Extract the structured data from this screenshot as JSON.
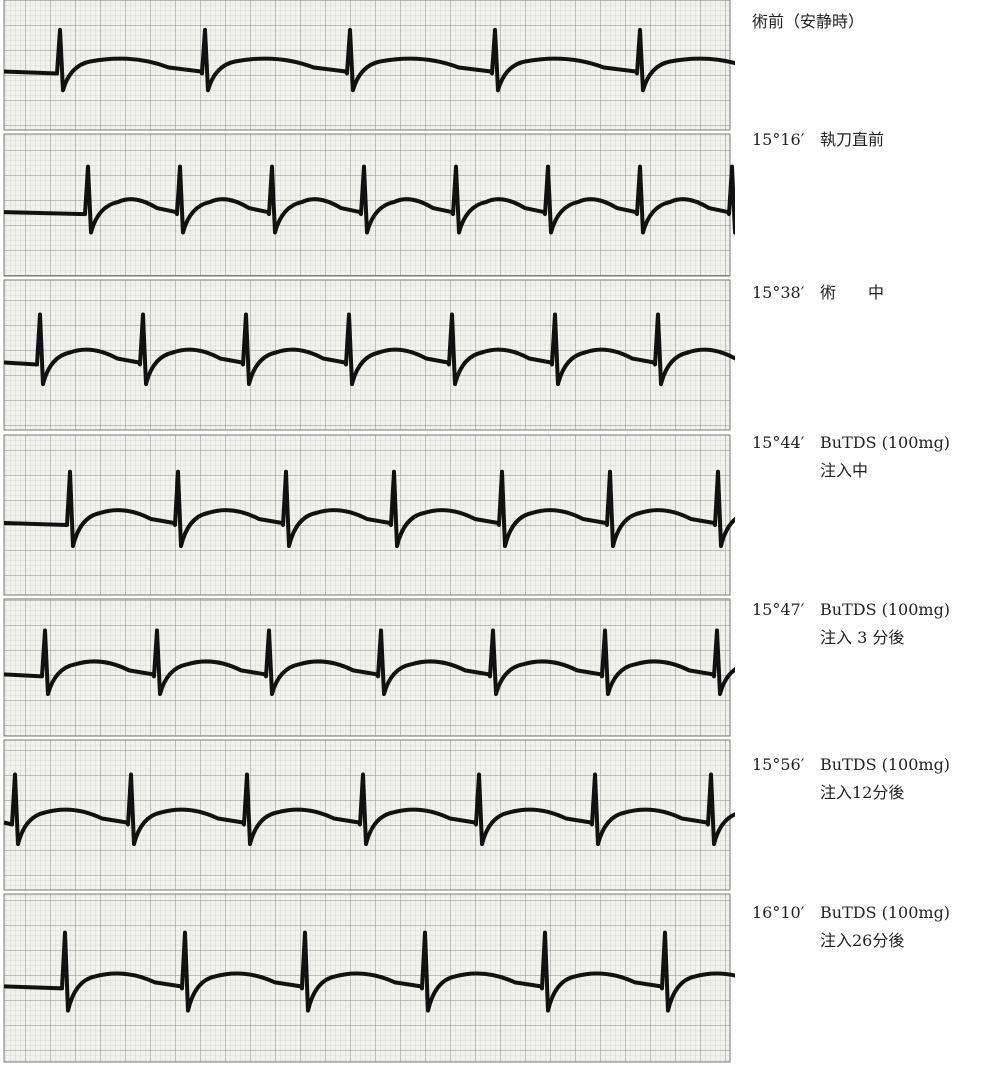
{
  "strips": [
    {
      "lines": [
        "術前（安静時）"
      ]
    },
    {
      "time": "15°16′",
      "lines": [
        "執刀直前"
      ]
    },
    {
      "time": "15°38′",
      "lines": [
        "術　　中"
      ]
    },
    {
      "time": "15°44′",
      "lines": [
        "BuTDS (100mg)",
        "注入中"
      ]
    },
    {
      "time": "15°47′",
      "lines": [
        "BuTDS (100mg)",
        "注入 3 分後"
      ]
    },
    {
      "time": "15°56′",
      "lines": [
        "BuTDS (100mg)",
        "注入12分後"
      ]
    },
    {
      "time": "16°10′",
      "lines": [
        "BuTDS (100mg)",
        "注入26分後"
      ]
    }
  ]
}
